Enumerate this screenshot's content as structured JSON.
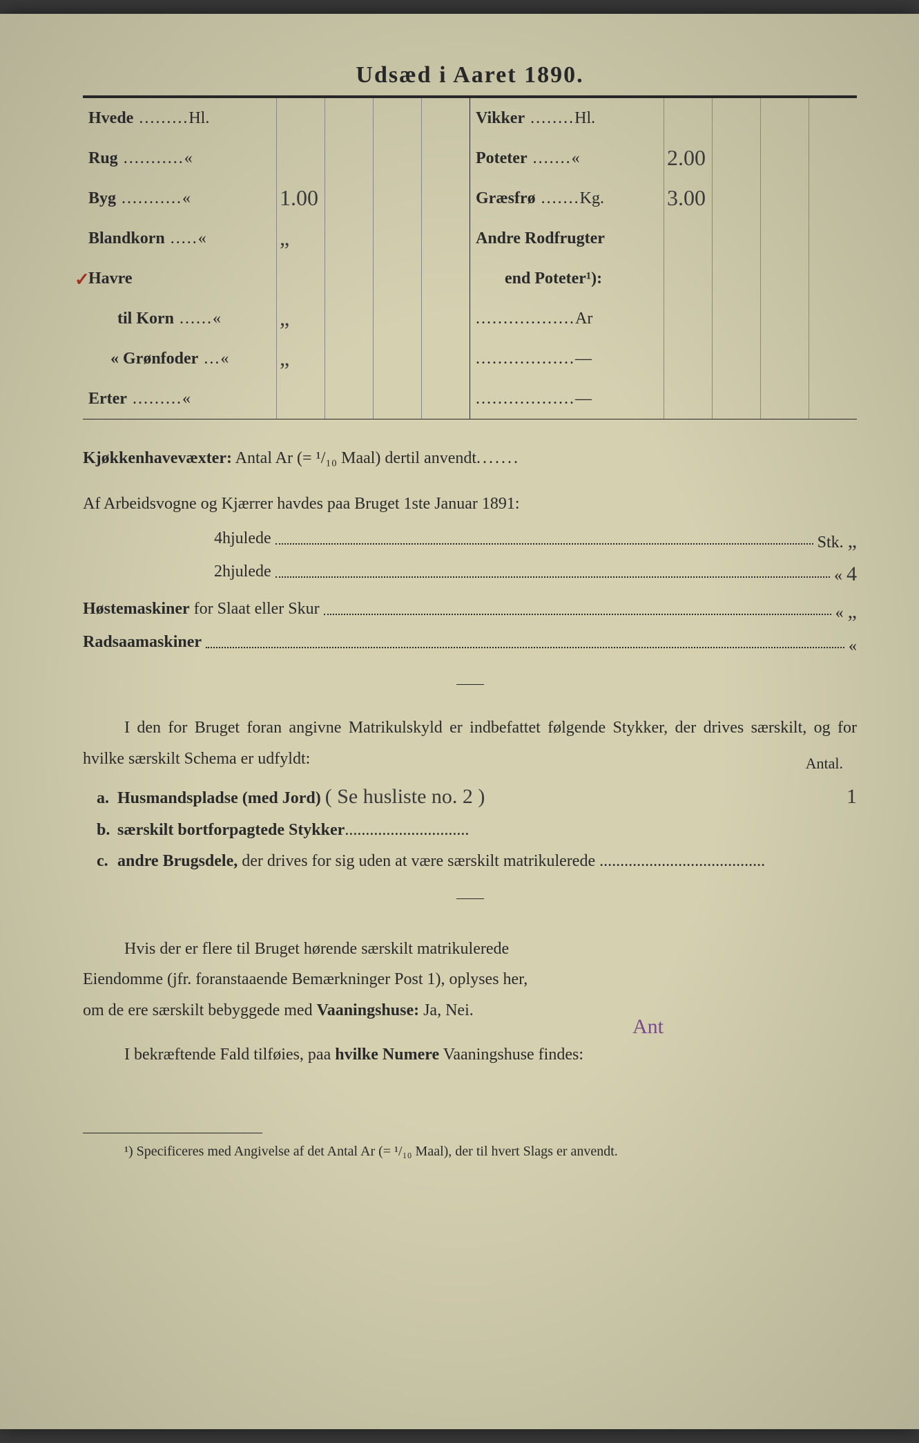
{
  "title": "Udsæd i Aaret 1890.",
  "crops_left": [
    {
      "label": "Hvede",
      "unit": "Hl.",
      "value": ""
    },
    {
      "label": "Rug",
      "unit": "«",
      "value": ""
    },
    {
      "label": "Byg",
      "unit": "«",
      "value": "1.00"
    },
    {
      "label": "Blandkorn",
      "unit": "«",
      "value": "„"
    },
    {
      "label": "Havre",
      "unit": "",
      "value": ""
    },
    {
      "label": "til Korn",
      "unit": "«",
      "value": "„",
      "indent": true
    },
    {
      "label": "« Grønfoder",
      "unit": "«",
      "value": "„",
      "indent2": true
    },
    {
      "label": "Erter",
      "unit": "«",
      "value": ""
    }
  ],
  "crops_right": [
    {
      "label": "Vikker",
      "unit": "Hl.",
      "value": ""
    },
    {
      "label": "Poteter",
      "unit": "«",
      "value": "2.00"
    },
    {
      "label": "Græsfrø",
      "unit": "Kg.",
      "value": "3.00"
    },
    {
      "label": "Andre Rodfrugter",
      "unit": "",
      "value": ""
    },
    {
      "label": "end Poteter¹):",
      "unit": "",
      "value": "",
      "indent": true
    },
    {
      "label": "",
      "unit": "Ar",
      "value": "",
      "dotline": true
    },
    {
      "label": "",
      "unit": "—",
      "value": "",
      "dotline": true
    },
    {
      "label": "",
      "unit": "—",
      "value": "",
      "dotline": true
    }
  ],
  "kitchen_line": {
    "bold1": "Kjøkkenhavevæxter:",
    "text": " Antal Ar (= ¹/₁₀ Maal) dertil anvendt",
    "dots": "......."
  },
  "wagons_intro": "Af Arbeidsvogne og Kjærrer havdes paa Bruget 1ste Januar 1891:",
  "wagons": [
    {
      "label": "4hjulede",
      "unit": "Stk.",
      "value": "„"
    },
    {
      "label": "2hjulede",
      "unit": "«",
      "value": "4"
    }
  ],
  "machines": [
    {
      "bold": "Høstemaskiner",
      "rest": " for Slaat eller Skur",
      "unit": "«",
      "value": "„"
    },
    {
      "bold": "Radsaamaskiner",
      "rest": "",
      "unit": "«",
      "value": ""
    }
  ],
  "para1": "I den for Bruget foran angivne Matrikulskyld er indbefattet følgende Stykker, der drives særskilt, og for hvilke særskilt Schema er udfyldt:",
  "antal_label": "Antal.",
  "list": [
    {
      "letter": "a.",
      "bold": "Husmandspladse (med Jord)",
      "hand": "( Se husliste no. 2 )",
      "count": "1"
    },
    {
      "letter": "b.",
      "bold": "særskilt bortforpagtede Stykker",
      "hand": "",
      "count": ""
    },
    {
      "letter": "c.",
      "bold": "andre Brugsdele,",
      "rest": " der drives for sig uden at være særskilt matrikulerede",
      "hand": "",
      "count": ""
    }
  ],
  "para2_l1": "Hvis der er flere til Bruget hørende særskilt matrikulerede",
  "para2_l2": "Eiendomme (jfr. foranstaaende Bemærkninger Post 1), oplyses her,",
  "para2_l3_a": "om de ere særskilt bebyggede med ",
  "para2_l3_bold": "Vaaningshuse:",
  "para2_l3_b": " Ja, Nei.",
  "purple_mark": "Ant",
  "para3_a": "I bekræftende Fald tilføies, paa ",
  "para3_bold": "hvilke Numere",
  "para3_b": " Vaaningshuse findes:",
  "footnote": "¹) Specificeres med Angivelse af det Antal Ar (= ¹/₁₀ Maal), der til hvert Slags er anvendt.",
  "havre_mark": "✓"
}
